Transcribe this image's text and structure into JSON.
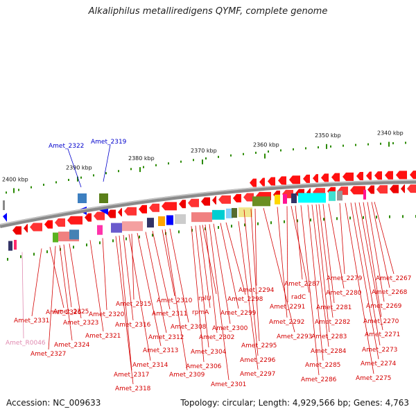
{
  "title": "Alkaliphilus metalliredigens QYMF, complete genome",
  "accession": "Accession: NC_009633",
  "summary": "Topology: circular; Length: 4,929,566 bp; Genes: 4,763",
  "colors": {
    "gene_label": "#d40000",
    "highlight_label": "#0000cc",
    "rna_label": "#e08ab0",
    "forward_gene": "#ff0000",
    "backbone": "#888888",
    "tick": "#2a8a00"
  },
  "ruler": [
    {
      "label": "2400 kbp"
    },
    {
      "label": "2390 kbp"
    },
    {
      "label": "2380 kbp"
    },
    {
      "label": "2370 kbp"
    },
    {
      "label": "2360 kbp"
    },
    {
      "label": "2350 kbp"
    },
    {
      "label": "2340 kbp"
    }
  ],
  "top_labels": [
    {
      "text": "Amet_2322"
    },
    {
      "text": "Amet_2319"
    }
  ],
  "gene_labels": [
    {
      "text": "Amet_2331"
    },
    {
      "text": "Amet_R0046"
    },
    {
      "text": "Amet_2326"
    },
    {
      "text": "Amet_2327"
    },
    {
      "text": "Amet_2325"
    },
    {
      "text": "Amet_2324"
    },
    {
      "text": "Amet_2323"
    },
    {
      "text": "Amet_2321"
    },
    {
      "text": "Amet_2320"
    },
    {
      "text": "Amet_2318"
    },
    {
      "text": "Amet_2317"
    },
    {
      "text": "Amet_2316"
    },
    {
      "text": "Amet_2315"
    },
    {
      "text": "Amet_2314"
    },
    {
      "text": "Amet_2313"
    },
    {
      "text": "Amet_2312"
    },
    {
      "text": "Amet_2311"
    },
    {
      "text": "Amet_2310"
    },
    {
      "text": "Amet_2309"
    },
    {
      "text": "Amet_2308"
    },
    {
      "text": "Amet_2306"
    },
    {
      "text": "Amet_2304"
    },
    {
      "text": "rpmA"
    },
    {
      "text": "rplU"
    },
    {
      "text": "Amet_2302"
    },
    {
      "text": "Amet_2301"
    },
    {
      "text": "Amet_2300"
    },
    {
      "text": "Amet_2299"
    },
    {
      "text": "Amet_2298"
    },
    {
      "text": "Amet_2297"
    },
    {
      "text": "Amet_2296"
    },
    {
      "text": "Amet_2295"
    },
    {
      "text": "Amet_2294"
    },
    {
      "text": "Amet_2293"
    },
    {
      "text": "Amet_2292"
    },
    {
      "text": "Amet_2291"
    },
    {
      "text": "radC"
    },
    {
      "text": "Amet_2287"
    },
    {
      "text": "Amet_2286"
    },
    {
      "text": "Amet_2285"
    },
    {
      "text": "Amet_2284"
    },
    {
      "text": "Amet_2283"
    },
    {
      "text": "Amet_2282"
    },
    {
      "text": "Amet_2281"
    },
    {
      "text": "Amet_2280"
    },
    {
      "text": "Amet_2279"
    },
    {
      "text": "Amet_2275"
    },
    {
      "text": "Amet_2274"
    },
    {
      "text": "Amet_2273"
    },
    {
      "text": "Amet_2271"
    },
    {
      "text": "Amet_2270"
    },
    {
      "text": "Amet_2269"
    },
    {
      "text": "Amet_2268"
    },
    {
      "text": "Amet_2267"
    }
  ]
}
